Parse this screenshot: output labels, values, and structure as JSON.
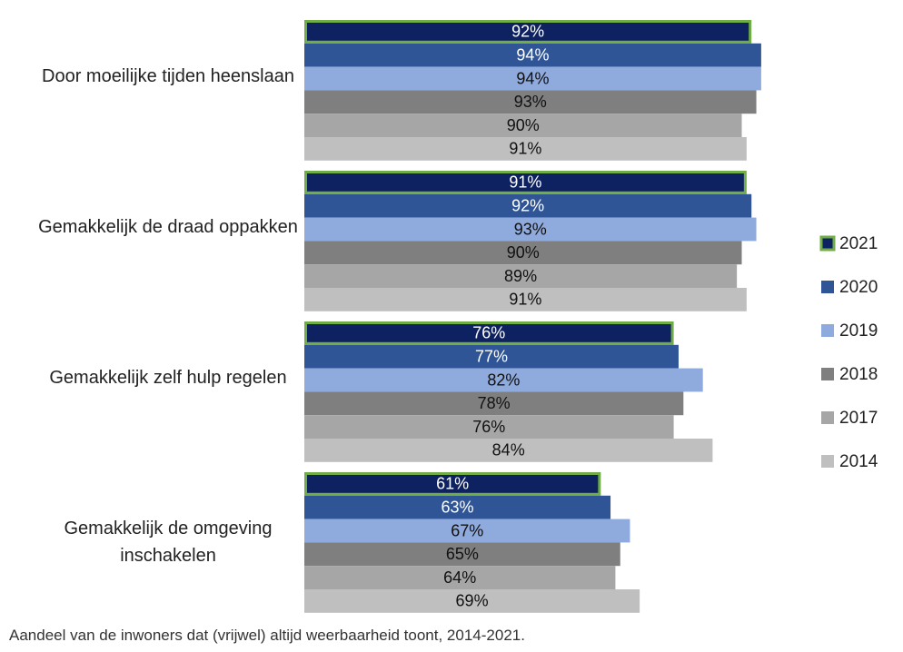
{
  "chart_data": {
    "type": "bar",
    "orientation": "horizontal",
    "categories": [
      "Door moeilijke tijden heenslaan",
      "Gemakkelijk de draad oppakken",
      "Gemakkelijk zelf hulp regelen",
      "Gemakkelijk de omgeving inschakelen"
    ],
    "series": [
      {
        "name": "2021",
        "color": "#0e2160",
        "outline": "#70ad47",
        "values": [
          92,
          91,
          76,
          61
        ],
        "value_labels": [
          "92%",
          "91%",
          "76%",
          "61%"
        ]
      },
      {
        "name": "2020",
        "color": "#2f5597",
        "values": [
          94,
          92,
          77,
          63
        ],
        "value_labels": [
          "94%",
          "92%",
          "77%",
          "63%"
        ]
      },
      {
        "name": "2019",
        "color": "#8faadc",
        "values": [
          94,
          93,
          82,
          67
        ],
        "value_labels": [
          "94%",
          "93%",
          "82%",
          "67%"
        ]
      },
      {
        "name": "2018",
        "color": "#7f7f7f",
        "values": [
          93,
          90,
          78,
          65
        ],
        "value_labels": [
          "93%",
          "90%",
          "78%",
          "65%"
        ]
      },
      {
        "name": "2017",
        "color": "#a6a6a6",
        "values": [
          90,
          89,
          76,
          64
        ],
        "value_labels": [
          "90%",
          "89%",
          "76%",
          "64%"
        ]
      },
      {
        "name": "2014",
        "color": "#bfbfbf",
        "values": [
          91,
          91,
          84,
          69
        ],
        "value_labels": [
          "91%",
          "91%",
          "84%",
          "69%"
        ]
      }
    ],
    "xlim": [
      0,
      100
    ],
    "caption": "Aandeel van de inwoners dat (vrijwel) altijd weerbaarheid toont, 2014-2021."
  }
}
